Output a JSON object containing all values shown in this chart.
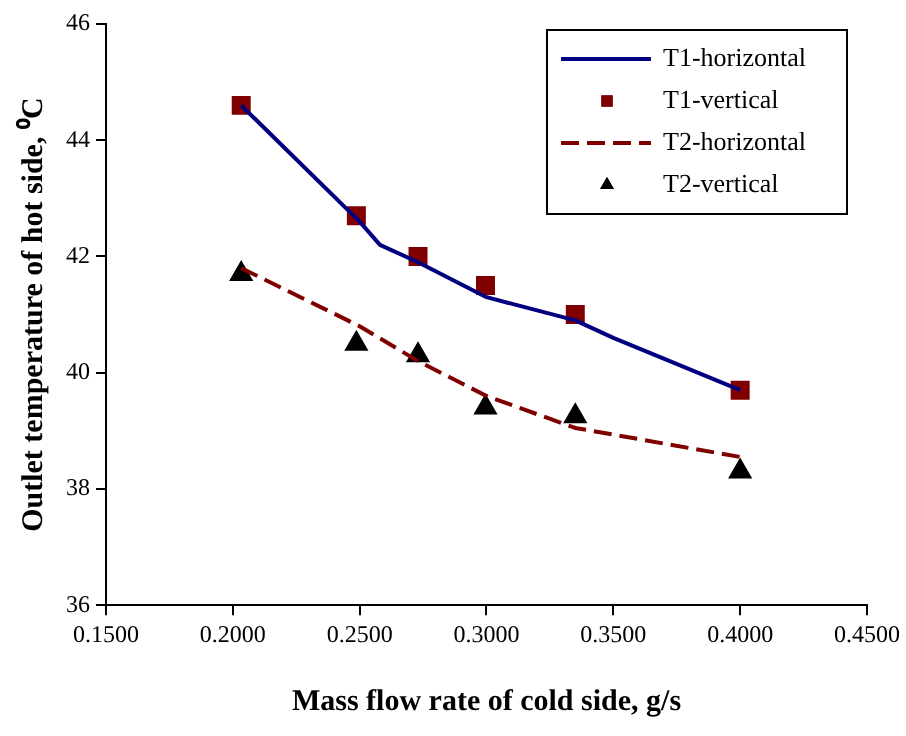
{
  "chart_data": {
    "type": "line",
    "xlabel": "Mass flow rate of cold side, g/s",
    "ylabel": "Outlet temperature of hot side, ⁰C",
    "xlim": [
      0.15,
      0.45
    ],
    "xticks": [
      {
        "value": 0.15,
        "label": "0.1500"
      },
      {
        "value": 0.2,
        "label": "0.2000"
      },
      {
        "value": 0.25,
        "label": "0.2500"
      },
      {
        "value": 0.3,
        "label": "0.3000"
      },
      {
        "value": 0.35,
        "label": "0.3500"
      },
      {
        "value": 0.4,
        "label": "0.4000"
      },
      {
        "value": 0.45,
        "label": "0.4500"
      }
    ],
    "ylim": [
      36,
      46
    ],
    "yticks": [
      36,
      38,
      40,
      42,
      44,
      46
    ],
    "grid": false,
    "legend": "top right",
    "series": [
      {
        "name": "T1-horizontal",
        "type": "line",
        "color": "#000080",
        "line_style": "solid",
        "marker": "none",
        "x": [
          0.2033,
          0.25,
          0.258,
          0.273,
          0.3,
          0.335,
          0.35,
          0.4
        ],
        "values": [
          44.6,
          42.6,
          42.2,
          41.9,
          41.3,
          40.9,
          40.6,
          39.7
        ]
      },
      {
        "name": "T1-vertical",
        "type": "scatter",
        "color": "#800000",
        "marker": "square",
        "x": [
          0.2033,
          0.2487,
          0.273,
          0.2996,
          0.335,
          0.4
        ],
        "values": [
          44.6,
          42.7,
          42.0,
          41.5,
          41.0,
          39.7
        ]
      },
      {
        "name": "T2-horizontal",
        "type": "line",
        "color": "#800000",
        "line_style": "dashed",
        "marker": "none",
        "x": [
          0.2033,
          0.25,
          0.273,
          0.3,
          0.335,
          0.4
        ],
        "values": [
          41.8,
          40.8,
          40.2,
          39.6,
          39.05,
          38.55
        ]
      },
      {
        "name": "T2-vertical",
        "type": "scatter",
        "color": "#000000",
        "marker": "triangle",
        "x": [
          0.2033,
          0.2487,
          0.273,
          0.2996,
          0.335,
          0.4
        ],
        "values": [
          41.7,
          40.5,
          40.3,
          39.4,
          39.25,
          38.3
        ]
      }
    ]
  }
}
